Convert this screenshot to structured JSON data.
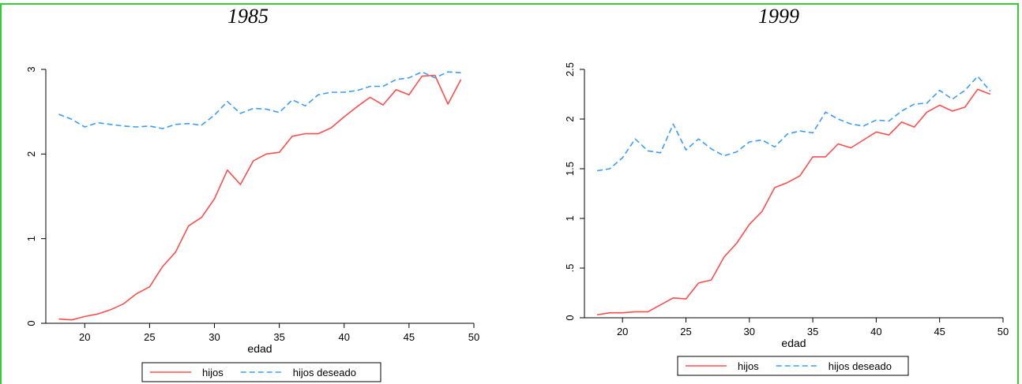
{
  "colors": {
    "frame": "#33cc33",
    "hijos": "#ff4d4d",
    "deseado": "#3d9df5",
    "axis": "#000000"
  },
  "chart_data": [
    {
      "type": "line",
      "title": "1985",
      "xlabel": "edad",
      "ylabel": "",
      "xlim": [
        17,
        50
      ],
      "ylim": [
        0,
        3
      ],
      "xticks": [
        20,
        25,
        30,
        35,
        40,
        45,
        50
      ],
      "yticks": [
        0,
        1,
        2,
        3
      ],
      "ytick_labels": [
        "0",
        "1",
        "2",
        "3"
      ],
      "grid": false,
      "legend_position": "bottom",
      "x": [
        18,
        19,
        20,
        21,
        22,
        23,
        24,
        25,
        26,
        27,
        28,
        29,
        30,
        31,
        32,
        33,
        34,
        35,
        36,
        37,
        38,
        39,
        40,
        41,
        42,
        43,
        44,
        45,
        46,
        47,
        48,
        49
      ],
      "series": [
        {
          "name": "hijos",
          "style": "solid",
          "color": "#ff4d4d",
          "values": [
            0.05,
            0.04,
            0.08,
            0.11,
            0.16,
            0.23,
            0.35,
            0.43,
            0.67,
            0.84,
            1.15,
            1.25,
            1.47,
            1.81,
            1.64,
            1.92,
            2.0,
            2.02,
            2.21,
            2.24,
            2.24,
            2.31,
            2.44,
            2.56,
            2.67,
            2.58,
            2.76,
            2.7,
            2.92,
            2.93,
            2.59,
            2.88
          ]
        },
        {
          "name": "hijos deseado",
          "style": "dashed",
          "color": "#3d9df5",
          "values": [
            2.47,
            2.41,
            2.32,
            2.37,
            2.35,
            2.33,
            2.32,
            2.33,
            2.3,
            2.35,
            2.36,
            2.34,
            2.46,
            2.62,
            2.48,
            2.54,
            2.53,
            2.49,
            2.64,
            2.57,
            2.7,
            2.73,
            2.73,
            2.75,
            2.8,
            2.8,
            2.88,
            2.9,
            2.97,
            2.9,
            2.97,
            2.96
          ]
        }
      ]
    },
    {
      "type": "line",
      "title": "1999",
      "xlabel": "edad",
      "ylabel": "",
      "xlim": [
        17,
        50
      ],
      "ylim": [
        0,
        2.5
      ],
      "xticks": [
        20,
        25,
        30,
        35,
        40,
        45,
        50
      ],
      "yticks": [
        0,
        0.5,
        1,
        1.5,
        2,
        2.5
      ],
      "ytick_labels": [
        "0",
        ".5",
        "1",
        "1.5",
        "2",
        "2.5"
      ],
      "grid": false,
      "legend_position": "bottom",
      "x": [
        18,
        19,
        20,
        21,
        22,
        23,
        24,
        25,
        26,
        27,
        28,
        29,
        30,
        31,
        32,
        33,
        34,
        35,
        36,
        37,
        38,
        39,
        40,
        41,
        42,
        43,
        44,
        45,
        46,
        47,
        48,
        49
      ],
      "series": [
        {
          "name": "hijos",
          "style": "solid",
          "color": "#ff4d4d",
          "values": [
            0.03,
            0.05,
            0.05,
            0.06,
            0.06,
            0.13,
            0.2,
            0.19,
            0.35,
            0.38,
            0.61,
            0.75,
            0.94,
            1.07,
            1.31,
            1.36,
            1.43,
            1.62,
            1.62,
            1.75,
            1.71,
            1.79,
            1.87,
            1.84,
            1.97,
            1.92,
            2.07,
            2.14,
            2.08,
            2.12,
            2.3,
            2.25
          ]
        },
        {
          "name": "hijos deseado",
          "style": "dashed",
          "color": "#3d9df5",
          "values": [
            1.48,
            1.5,
            1.61,
            1.8,
            1.68,
            1.66,
            1.95,
            1.69,
            1.8,
            1.7,
            1.63,
            1.67,
            1.77,
            1.79,
            1.72,
            1.85,
            1.88,
            1.86,
            2.07,
            2.0,
            1.95,
            1.93,
            1.99,
            1.98,
            2.08,
            2.15,
            2.16,
            2.29,
            2.2,
            2.29,
            2.43,
            2.28
          ]
        }
      ]
    }
  ]
}
